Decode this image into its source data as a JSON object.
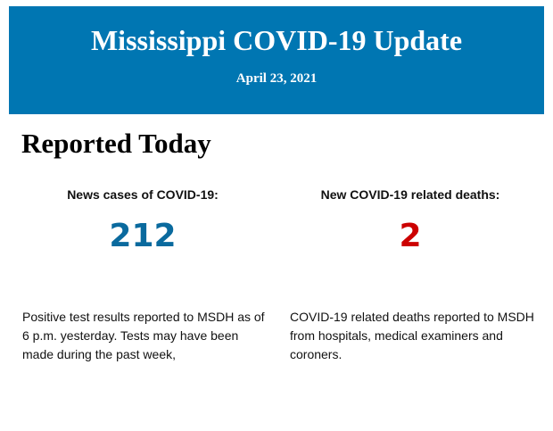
{
  "header": {
    "title": "Mississippi COVID-19 Update",
    "date": "April 23, 2021"
  },
  "section_title": "Reported Today",
  "stats": [
    {
      "label": "News cases of COVID-19:",
      "value": "212",
      "color": "#0a6a9e",
      "description": "Positive test results reported to MSDH as of 6 p.m. yesterday. Tests may have been made during the past week,"
    },
    {
      "label": "New COVID-19 related deaths:",
      "value": "2",
      "color": "#cc0000",
      "description": "COVID-19 related deaths reported to MSDH from hospitals, medical examiners and coroners."
    }
  ],
  "colors": {
    "banner": "#0076b2"
  }
}
